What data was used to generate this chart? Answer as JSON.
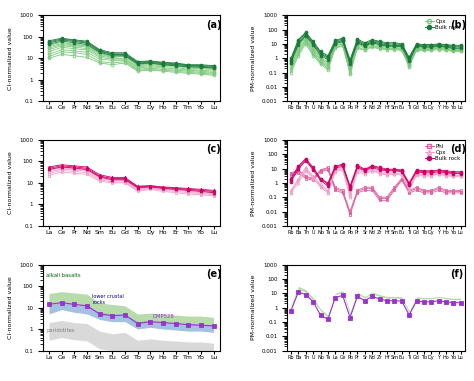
{
  "ree_labels": [
    "La",
    "Ce",
    "Pr",
    "Nd",
    "Sm",
    "Eu",
    "Gd",
    "Tb",
    "Dy",
    "Ho",
    "Er",
    "Tm",
    "Yb",
    "Lu"
  ],
  "pm_labels": [
    "Rb",
    "Ba",
    "Th",
    "U",
    "Nb",
    "Ta",
    "La",
    "Ce",
    "Pb",
    "Pr",
    "Sr",
    "Nd",
    "Zr",
    "Hf",
    "Sm",
    "Eu",
    "Ti",
    "Gd",
    "Tb",
    "Dy",
    "Y",
    "Ho",
    "Yb",
    "Lu"
  ],
  "panel_a_cpx": [
    [
      40,
      55,
      45,
      40,
      18,
      14,
      14,
      5,
      6,
      5,
      5,
      4,
      4,
      3.5
    ],
    [
      35,
      48,
      42,
      37,
      17,
      12,
      13,
      5,
      5.5,
      4.8,
      4.5,
      3.8,
      3.5,
      3.2
    ],
    [
      30,
      43,
      38,
      33,
      15,
      11,
      12,
      4.5,
      5,
      4.5,
      4.2,
      3.5,
      3.2,
      3
    ],
    [
      25,
      38,
      33,
      28,
      13,
      10,
      10,
      4,
      4.5,
      4,
      3.8,
      3,
      2.8,
      2.5
    ],
    [
      20,
      32,
      28,
      24,
      11,
      9,
      9,
      3.5,
      4,
      3.5,
      3.2,
      2.8,
      2.5,
      2.2
    ],
    [
      15,
      25,
      22,
      19,
      9,
      8,
      8,
      3,
      3.5,
      3,
      2.8,
      2.5,
      2.2,
      2
    ],
    [
      12,
      20,
      18,
      15,
      7,
      6,
      7,
      2.8,
      3,
      2.8,
      2.5,
      2.2,
      2,
      1.8
    ],
    [
      10,
      15,
      13,
      11,
      6,
      5,
      6,
      2.5,
      2.8,
      2.5,
      2.2,
      2,
      1.8,
      1.6
    ]
  ],
  "panel_a_bulk": [
    [
      65,
      85,
      72,
      62,
      25,
      18,
      18,
      7,
      7.5,
      6.5,
      6,
      5,
      5,
      4.5
    ],
    [
      58,
      78,
      66,
      56,
      23,
      16,
      16,
      6.5,
      7,
      6,
      5.5,
      4.8,
      4.5,
      4.2
    ],
    [
      52,
      70,
      60,
      50,
      21,
      15,
      15,
      6,
      6.5,
      5.5,
      5,
      4.5,
      4.2,
      3.8
    ],
    [
      45,
      62,
      53,
      44,
      19,
      13,
      13,
      5.5,
      6,
      5,
      4.5,
      4,
      3.8,
      3.5
    ]
  ],
  "panel_b_cpx": [
    [
      0.5,
      8,
      35,
      5,
      1.2,
      0.5,
      12,
      18,
      0.3,
      15,
      8,
      14,
      9,
      8,
      8,
      7,
      0.6,
      7,
      6,
      6,
      7,
      6,
      5,
      5
    ],
    [
      0.4,
      6,
      28,
      4,
      1,
      0.4,
      10,
      15,
      0.25,
      12,
      7,
      12,
      8,
      7,
      7,
      6,
      0.5,
      6,
      5.5,
      5.5,
      6,
      5.5,
      4.5,
      4.5
    ],
    [
      0.3,
      4,
      22,
      3,
      0.8,
      0.3,
      8,
      12,
      0.2,
      10,
      6,
      10,
      7,
      6,
      6,
      5,
      0.4,
      5,
      5,
      5,
      5.5,
      5,
      4,
      4
    ],
    [
      0.2,
      3,
      18,
      2.5,
      0.6,
      0.25,
      7,
      10,
      0.15,
      8,
      5,
      8,
      6,
      5,
      5,
      4.5,
      0.35,
      4.5,
      4.5,
      4.5,
      5,
      4.5,
      3.5,
      3.5
    ],
    [
      0.15,
      2,
      14,
      2,
      0.5,
      0.2,
      6,
      8,
      0.1,
      6,
      4,
      7,
      5,
      4.5,
      4.5,
      4,
      0.3,
      4,
      4,
      4,
      4.5,
      4,
      3.2,
      3.2
    ],
    [
      0.1,
      1.5,
      10,
      1.5,
      0.4,
      0.15,
      5,
      7,
      0.08,
      5,
      3.5,
      6,
      4.5,
      4,
      4,
      3.5,
      0.25,
      3.5,
      3.5,
      3.5,
      4,
      3.5,
      3,
      3
    ]
  ],
  "panel_b_bulk": [
    [
      1,
      20,
      65,
      15,
      3,
      1.5,
      18,
      25,
      0.8,
      22,
      12,
      20,
      15,
      12,
      12,
      10,
      1.2,
      10,
      9,
      9,
      10,
      9,
      8,
      8
    ],
    [
      0.8,
      16,
      55,
      12,
      2.5,
      1.2,
      15,
      22,
      0.6,
      18,
      10,
      17,
      13,
      10,
      10,
      9,
      1,
      9,
      8,
      8,
      9,
      8,
      7,
      7
    ],
    [
      0.6,
      12,
      45,
      10,
      2,
      1,
      12,
      18,
      0.5,
      15,
      8,
      14,
      11,
      8,
      8,
      7.5,
      0.8,
      8,
      7,
      7,
      8,
      7,
      6,
      6
    ],
    [
      0.5,
      9,
      38,
      8,
      1.5,
      0.8,
      10,
      15,
      0.4,
      12,
      7,
      12,
      9,
      7,
      7,
      6.5,
      0.6,
      7,
      6,
      6,
      7,
      6,
      5,
      5
    ]
  ],
  "panel_c_cpx": [
    [
      42,
      55,
      48,
      43,
      20,
      16,
      16,
      6,
      7,
      6,
      5.5,
      5,
      4.5,
      4
    ],
    [
      38,
      50,
      44,
      39,
      18,
      14,
      15,
      5.5,
      6.5,
      5.5,
      5,
      4.5,
      4,
      3.5
    ],
    [
      32,
      44,
      40,
      35,
      16,
      13,
      13,
      5,
      6,
      5,
      4.5,
      4,
      3.5,
      3.2
    ],
    [
      27,
      38,
      34,
      30,
      14,
      11,
      11,
      4.5,
      5.5,
      4.5,
      4,
      3.5,
      3.2,
      2.8
    ],
    [
      22,
      32,
      28,
      25,
      12,
      10,
      10,
      4,
      5,
      4,
      3.5,
      3,
      2.8,
      2.5
    ]
  ],
  "panel_c_bulk": [
    [
      55,
      70,
      62,
      55,
      24,
      18,
      18,
      7,
      7.5,
      6.5,
      6,
      5.5,
      5,
      4.5
    ],
    [
      48,
      62,
      55,
      48,
      21,
      16,
      16,
      6.5,
      7,
      6,
      5.5,
      5,
      4.5,
      4
    ],
    [
      42,
      55,
      49,
      42,
      19,
      14,
      14,
      6,
      6.5,
      5.5,
      5,
      4.5,
      4,
      3.5
    ]
  ],
  "panel_d_phl": [
    [
      5,
      8,
      3,
      2,
      8,
      12,
      0.5,
      0.3,
      0.01,
      0.3,
      0.5,
      0.5,
      0.1,
      0.1,
      0.5,
      2,
      0.3,
      0.5,
      0.3,
      0.3,
      0.5,
      0.3,
      0.3,
      0.3
    ],
    [
      4,
      7,
      2.5,
      1.8,
      7,
      10,
      0.4,
      0.25,
      0.008,
      0.25,
      0.4,
      0.4,
      0.08,
      0.08,
      0.4,
      1.8,
      0.25,
      0.4,
      0.25,
      0.25,
      0.4,
      0.25,
      0.25,
      0.25
    ],
    [
      3,
      5,
      2,
      1.5,
      6,
      8,
      0.3,
      0.2,
      0.006,
      0.2,
      0.3,
      0.3,
      0.06,
      0.06,
      0.3,
      1.5,
      0.2,
      0.3,
      0.2,
      0.2,
      0.3,
      0.2,
      0.2,
      0.2
    ]
  ],
  "panel_d_cpx": [
    [
      0.3,
      2,
      12,
      3,
      0.8,
      0.3,
      8,
      12,
      0.2,
      10,
      6,
      10,
      6,
      5,
      5,
      4.5,
      0.4,
      4.5,
      4,
      4,
      5,
      4,
      3.5,
      3.5
    ],
    [
      0.25,
      1.5,
      9,
      2.5,
      0.6,
      0.25,
      7,
      10,
      0.15,
      8,
      5,
      8,
      5,
      4,
      4.5,
      4,
      0.35,
      4,
      3.5,
      3.5,
      4.5,
      3.5,
      3.2,
      3.2
    ],
    [
      0.2,
      1,
      7,
      2,
      0.5,
      0.2,
      6,
      8,
      0.1,
      6,
      4,
      7,
      4.5,
      3.5,
      4,
      3.5,
      0.3,
      3.5,
      3,
      3,
      4,
      3,
      2.8,
      2.8
    ]
  ],
  "panel_d_bulk": [
    [
      2,
      15,
      50,
      12,
      2,
      1,
      15,
      20,
      0.6,
      17,
      9,
      16,
      12,
      9,
      9,
      8,
      1,
      8,
      7,
      7,
      8,
      7,
      6,
      6
    ],
    [
      1.5,
      12,
      42,
      10,
      1.8,
      0.8,
      13,
      17,
      0.5,
      14,
      8,
      14,
      10,
      8,
      8,
      7,
      0.8,
      7,
      6,
      6,
      7,
      6,
      5,
      5
    ],
    [
      1.2,
      9,
      35,
      8,
      1.5,
      0.6,
      11,
      14,
      0.4,
      12,
      7,
      12,
      8,
      7,
      7,
      6,
      0.7,
      6,
      5,
      5,
      6,
      5,
      4.5,
      4.5
    ]
  ],
  "panel_e_alkali": [
    [
      45,
      55,
      48,
      42,
      16,
      14,
      12,
      5,
      5.5,
      5,
      4.5,
      4,
      4,
      3.5
    ],
    [
      38,
      48,
      42,
      36,
      14,
      12,
      11,
      4.5,
      5,
      4.5,
      4,
      3.5,
      3.5,
      3
    ],
    [
      30,
      40,
      35,
      30,
      12,
      10,
      9,
      4,
      4.5,
      4,
      3.5,
      3.2,
      3,
      2.8
    ],
    [
      25,
      33,
      28,
      24,
      10,
      9,
      8,
      3.5,
      4,
      3.5,
      3.2,
      2.8,
      2.5,
      2.2
    ],
    [
      20,
      27,
      23,
      19,
      8,
      7,
      7,
      3,
      3.5,
      3,
      2.8,
      2.5,
      2.2,
      2
    ],
    [
      15,
      21,
      18,
      15,
      7,
      6,
      6,
      2.5,
      3,
      2.8,
      2.5,
      2.2,
      2,
      1.8
    ],
    [
      12,
      17,
      14,
      12,
      5.5,
      5,
      5,
      2,
      2.5,
      2.2,
      2,
      1.8,
      1.8,
      1.5
    ]
  ],
  "panel_e_lower": [
    [
      12,
      18,
      14,
      12,
      6,
      5,
      5,
      2.2,
      2.5,
      2.2,
      2,
      1.8,
      1.8,
      1.5
    ],
    [
      8,
      12,
      9,
      8,
      4,
      3.5,
      3.5,
      1.5,
      1.8,
      1.5,
      1.4,
      1.2,
      1.2,
      1
    ],
    [
      5,
      8,
      6,
      5,
      2.8,
      2.2,
      2.2,
      1,
      1.2,
      1,
      0.9,
      0.8,
      0.8,
      0.7
    ]
  ],
  "panel_e_peridotites": [
    [
      2,
      2.5,
      2,
      1.8,
      0.8,
      0.6,
      0.7,
      0.3,
      0.35,
      0.3,
      0.28,
      0.25,
      0.25,
      0.22
    ],
    [
      0.8,
      1,
      0.8,
      0.7,
      0.3,
      0.25,
      0.25,
      0.12,
      0.14,
      0.12,
      0.11,
      0.1,
      0.1,
      0.09
    ],
    [
      0.3,
      0.4,
      0.32,
      0.28,
      0.12,
      0.1,
      0.1,
      0.05,
      0.06,
      0.05,
      0.045,
      0.04,
      0.04,
      0.035
    ]
  ],
  "panel_e_dmp528": [
    14,
    17,
    14,
    12,
    5,
    4.2,
    4.5,
    1.8,
    2.2,
    2,
    1.8,
    1.6,
    1.5,
    1.4
  ],
  "panel_f_pm_data": [
    [
      1.5,
      30,
      18,
      5,
      0.8,
      0.3,
      10,
      15,
      0.5,
      12,
      6,
      12,
      8,
      6,
      6,
      5.5,
      0.6,
      5.5,
      5,
      5,
      6,
      5,
      4.5,
      4.5
    ],
    [
      1.2,
      25,
      15,
      4,
      0.7,
      0.25,
      9,
      13,
      0.4,
      10,
      5,
      10,
      7,
      5,
      5,
      4.8,
      0.5,
      4.8,
      4.5,
      4.5,
      5.5,
      4.5,
      4,
      4
    ],
    [
      1,
      20,
      12,
      3,
      0.6,
      0.2,
      8,
      11,
      0.3,
      9,
      4.5,
      9,
      6,
      4.5,
      4.5,
      4.2,
      0.4,
      4.2,
      4,
      4,
      5,
      4,
      3.5,
      3.5
    ]
  ],
  "panel_f_dmp528_pm": [
    0.6,
    12,
    8,
    2.5,
    0.3,
    0.15,
    5,
    7,
    0.2,
    6,
    3,
    6,
    4,
    3,
    3,
    2.8,
    0.3,
    2.8,
    2.5,
    2.5,
    3,
    2.5,
    2.2,
    2.2
  ],
  "green_dark": "#1a7a3a",
  "green_light": "#7dc87d",
  "green_medium": "#2da44e",
  "pink_dark": "#cc0066",
  "pink_medium": "#e060a0",
  "pink_light": "#f0a0c8",
  "purple": "#9933cc",
  "gray_fill": "#c0c0c0",
  "blue_fill": "#6699cc",
  "green_fill": "#99cc88"
}
